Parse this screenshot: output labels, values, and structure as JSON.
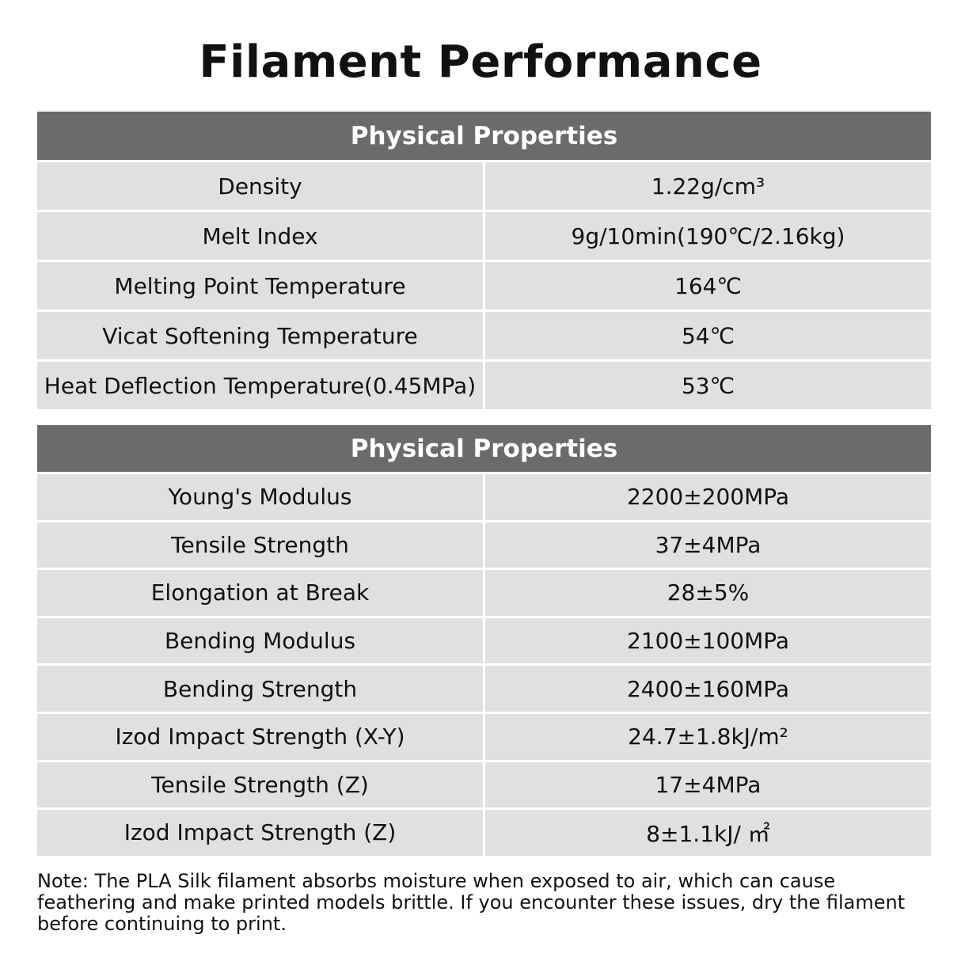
{
  "title": "Filament Performance",
  "tables": [
    {
      "header": "Physical Properties",
      "rows": [
        {
          "label": "Density",
          "value": "1.22g/cm³"
        },
        {
          "label": "Melt Index",
          "value": "9g/10min(190℃/2.16kg)"
        },
        {
          "label": "Melting Point Temperature",
          "value": "164℃"
        },
        {
          "label": "Vicat Softening Temperature",
          "value": "54℃"
        },
        {
          "label": "Heat Deflection Temperature(0.45MPa)",
          "value": "53℃"
        }
      ]
    },
    {
      "header": "Physical Properties",
      "rows": [
        {
          "label": "Young's Modulus",
          "value": "2200±200MPa"
        },
        {
          "label": "Tensile Strength",
          "value": "37±4MPa"
        },
        {
          "label": "Elongation at Break",
          "value": "28±5%"
        },
        {
          "label": "Bending Modulus",
          "value": "2100±100MPa"
        },
        {
          "label": "Bending Strength",
          "value": "2400±160MPa"
        },
        {
          "label": "Izod Impact Strength (X-Y)",
          "value": "24.7±1.8kJ/m²"
        },
        {
          "label": "Tensile Strength (Z)",
          "value": "17±4MPa"
        },
        {
          "label": "Izod Impact Strength (Z)",
          "value": "8±1.1kJ/ ㎡"
        }
      ]
    }
  ],
  "note": "Note: The PLA Silk filament absorbs moisture when exposed to air, which can cause feathering and make printed models brittle. If you encounter these issues, dry the filament before continuing to print.",
  "colors": {
    "header_bg": "#6b6b6b",
    "cell_bg": "#e0e0e0"
  }
}
